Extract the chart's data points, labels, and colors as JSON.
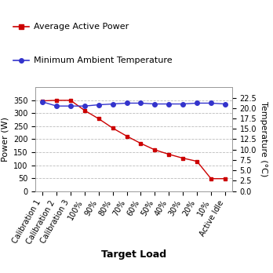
{
  "x_labels": [
    "Calibration 1",
    "Calibration 2",
    "Calibration 3",
    "100%",
    "90%",
    "80%",
    "70%",
    "60%",
    "50%",
    "40%",
    "30%",
    "20%",
    "10%",
    "Active Idle"
  ],
  "power_values": [
    348,
    350,
    350,
    311,
    279,
    243,
    212,
    184,
    159,
    142,
    127,
    115,
    48,
    48
  ],
  "temp_values": [
    21.5,
    20.5,
    20.5,
    20.5,
    20.8,
    21.0,
    21.2,
    21.2,
    21.0,
    21.0,
    21.0,
    21.2,
    21.2,
    21.0
  ],
  "power_color": "#cc0000",
  "temp_color": "#3333cc",
  "power_label": "Average Active Power",
  "temp_label": "Minimum Ambient Temperature",
  "xlabel": "Target Load",
  "ylabel_left": "Power (W)",
  "ylabel_right": "Temperature (°C)",
  "ylim_left": [
    0,
    400
  ],
  "ylim_right": [
    0,
    25
  ],
  "yticks_left": [
    0,
    50,
    100,
    150,
    200,
    250,
    300,
    350
  ],
  "yticks_right": [
    0.0,
    2.5,
    5.0,
    7.5,
    10.0,
    12.5,
    15.0,
    17.5,
    20.0,
    22.5
  ],
  "grid_color": "#bbbbbb",
  "bg_color": "#ffffff",
  "plot_bg_color": "#ffffff",
  "legend_fontsize": 8,
  "xlabel_fontsize": 9,
  "ylabel_fontsize": 8,
  "tick_fontsize": 7
}
